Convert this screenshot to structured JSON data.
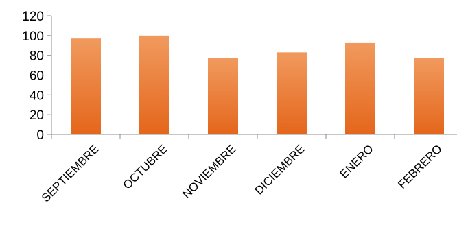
{
  "chart_data": {
    "type": "bar",
    "categories": [
      "SEPTIEMBRE",
      "OCTUBRE",
      "NOVIEMBRE",
      "DICIEMBRE",
      "ENERO",
      "FEBRERO"
    ],
    "values": [
      97,
      100,
      77,
      83,
      93,
      77
    ],
    "ylim": [
      0,
      120
    ],
    "yticks": [
      0,
      20,
      40,
      60,
      80,
      100,
      120
    ],
    "grid": false,
    "legend": "none",
    "colors": {
      "bar_top": "#f19a5e",
      "bar_bottom": "#e4661b",
      "axis": "#8c8c8c"
    }
  }
}
